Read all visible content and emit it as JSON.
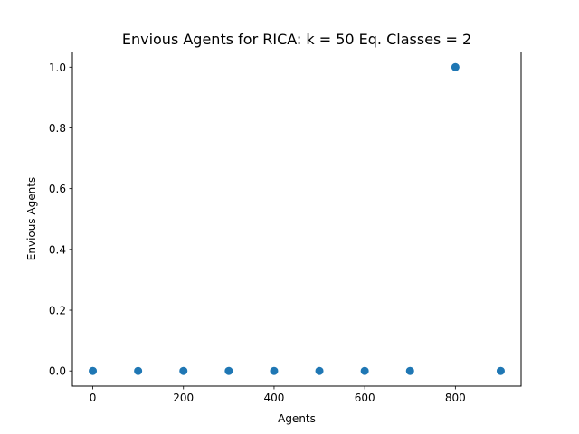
{
  "chart_data": {
    "type": "scatter",
    "title": "Envious Agents for RICA: k = 50 Eq. Classes = 2",
    "xlabel": "Agents",
    "ylabel": "Envious Agents",
    "xlim": [
      -45,
      945
    ],
    "ylim": [
      -0.05,
      1.05
    ],
    "x_ticks": [
      0,
      200,
      400,
      600,
      800
    ],
    "x_tick_labels": [
      "0",
      "200",
      "400",
      "600",
      "800"
    ],
    "y_ticks": [
      0.0,
      0.2,
      0.4,
      0.6,
      0.8,
      1.0
    ],
    "y_tick_labels": [
      "0.0",
      "0.2",
      "0.4",
      "0.6",
      "0.8",
      "1.0"
    ],
    "grid": false,
    "series": [
      {
        "color": "#1f77b4",
        "x": [
          0,
          100,
          200,
          300,
          400,
          500,
          600,
          700,
          800,
          900
        ],
        "y": [
          0,
          0,
          0,
          0,
          0,
          0,
          0,
          0,
          1,
          0
        ]
      }
    ]
  }
}
